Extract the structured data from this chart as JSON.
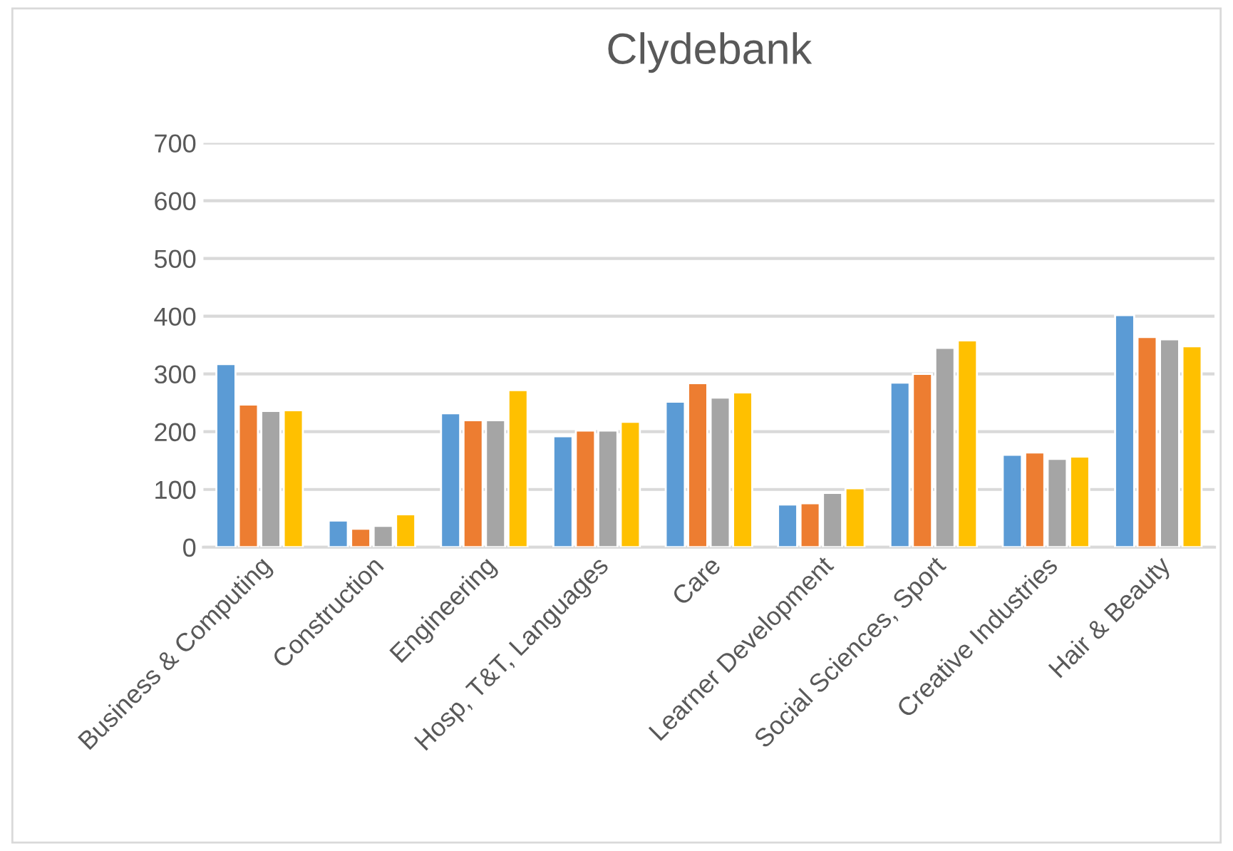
{
  "chart_data": {
    "type": "bar",
    "title": "Clydebank",
    "categories": [
      "Business & Computing",
      "Construction",
      "Engineering",
      "Hosp, T&T, Languages",
      "Care",
      "Learner Development",
      "Social Sciences, Sport",
      "Creative Industries",
      "Hair & Beauty"
    ],
    "series": [
      {
        "color": "#5b9bd5",
        "values": [
          317,
          46,
          232,
          192,
          252,
          74,
          285,
          160,
          402
        ]
      },
      {
        "color": "#ed7d31",
        "values": [
          247,
          32,
          220,
          202,
          284,
          76,
          300,
          164,
          364
        ]
      },
      {
        "color": "#a5a5a5",
        "values": [
          236,
          37,
          220,
          202,
          259,
          94,
          345,
          153,
          360
        ]
      },
      {
        "color": "#ffc000",
        "values": [
          237,
          57,
          272,
          217,
          268,
          102,
          358,
          157,
          348
        ]
      }
    ],
    "ylim": [
      0,
      700
    ],
    "yticks": [
      0,
      100,
      200,
      300,
      400,
      500,
      600,
      700
    ],
    "grid": "y",
    "legend": false
  }
}
